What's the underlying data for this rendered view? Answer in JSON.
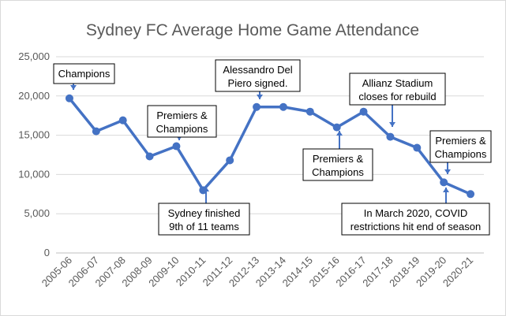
{
  "chart_data": {
    "type": "line",
    "title": "Sydney FC Average Home Game Attendance",
    "xlabel": "",
    "ylabel": "",
    "ylim": [
      0,
      25000
    ],
    "ytick_values": [
      0,
      5000,
      10000,
      15000,
      20000,
      25000
    ],
    "ytick_labels": [
      "0",
      "5,000",
      "10,000",
      "15,000",
      "20,000",
      "25,000"
    ],
    "grid": true,
    "legend": "none",
    "categories": [
      "2005-06",
      "2006-07",
      "2007-08",
      "2008-09",
      "2009-10",
      "2010-11",
      "2011-12",
      "2012-13",
      "2013-14",
      "2014-15",
      "2015-16",
      "2016-17",
      "2017-18",
      "2018-19",
      "2019-20",
      "2020-21"
    ],
    "series": [
      {
        "values": [
          19700,
          15500,
          16900,
          12300,
          13600,
          8000,
          11800,
          18600,
          18600,
          18000,
          16000,
          18000,
          14800,
          13400,
          9000,
          7500
        ]
      }
    ],
    "colors": {
      "line": "#4472c4",
      "grid": "#d9d9d9",
      "text": "#595959"
    },
    "annotations": [
      {
        "lines": [
          "Champions"
        ],
        "category": "2005-06"
      },
      {
        "lines": [
          "Premiers &",
          "Champions"
        ],
        "category": "2009-10"
      },
      {
        "lines": [
          "Sydney finished",
          "9th of 11 teams"
        ],
        "category": "2010-11"
      },
      {
        "lines": [
          "Alessandro Del",
          "Piero signed."
        ],
        "category": "2012-13"
      },
      {
        "lines": [
          "Premiers &",
          "Champions"
        ],
        "category": "2015-16"
      },
      {
        "lines": [
          "Allianz Stadium",
          "closes for rebuild"
        ],
        "category": "2017-18"
      },
      {
        "lines": [
          "Premiers &",
          "Champions"
        ],
        "category": "2019-20"
      },
      {
        "lines": [
          "In March 2020, COVID",
          "restrictions hit end of season"
        ],
        "category": "2019-20"
      }
    ]
  }
}
